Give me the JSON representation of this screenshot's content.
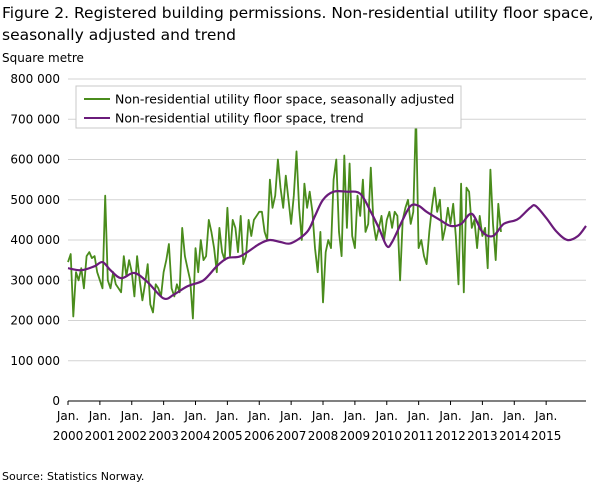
{
  "title": "Figure 2. Registered building permissions. Non-residential utility floor space, seasonally adjusted and trend",
  "unit_label": "Square metre",
  "source": "Source: Statistics Norway.",
  "colors": {
    "seasonal": "#4a8c1c",
    "trend": "#6a1b7a",
    "grid": "#d3d3d3"
  },
  "chart_data": {
    "type": "line",
    "title": "Figure 2. Registered building permissions. Non-residential utility floor space, seasonally adjusted and trend",
    "ylabel": "Square metre",
    "ylim": [
      0,
      800000
    ],
    "y_ticks": [
      0,
      100000,
      200000,
      300000,
      400000,
      500000,
      600000,
      700000,
      800000
    ],
    "y_tick_labels": [
      "0",
      "100 000",
      "200 000",
      "300 000",
      "400 000",
      "500 000",
      "600 000",
      "700 000",
      "800 000"
    ],
    "x_tick_month": "Jan.",
    "x_tick_years": [
      "2000",
      "2001",
      "2002",
      "2003",
      "2004",
      "2005",
      "2006",
      "2007",
      "2008",
      "2009",
      "2010",
      "2011",
      "2012",
      "2013",
      "2014",
      "2015"
    ],
    "x_range": [
      "2000-01",
      "2015-08"
    ],
    "grid": "horizontal",
    "legend_position": "top-left",
    "series": [
      {
        "name": "Non-residential utility floor space, seasonally adjusted",
        "color": "#4a8c1c",
        "start": "2000-01",
        "values": [
          345000,
          365000,
          210000,
          320000,
          300000,
          330000,
          280000,
          360000,
          370000,
          355000,
          360000,
          320000,
          300000,
          280000,
          510000,
          300000,
          280000,
          320000,
          290000,
          280000,
          270000,
          360000,
          310000,
          350000,
          320000,
          260000,
          360000,
          300000,
          250000,
          290000,
          340000,
          240000,
          220000,
          290000,
          280000,
          260000,
          320000,
          350000,
          390000,
          280000,
          260000,
          290000,
          270000,
          430000,
          360000,
          330000,
          300000,
          205000,
          380000,
          320000,
          400000,
          350000,
          360000,
          450000,
          420000,
          380000,
          320000,
          430000,
          370000,
          350000,
          480000,
          360000,
          450000,
          430000,
          370000,
          460000,
          340000,
          360000,
          450000,
          410000,
          450000,
          460000,
          470000,
          470000,
          420000,
          400000,
          550000,
          480000,
          510000,
          600000,
          530000,
          480000,
          560000,
          500000,
          440000,
          510000,
          620000,
          480000,
          400000,
          540000,
          480000,
          520000,
          470000,
          380000,
          320000,
          420000,
          245000,
          370000,
          400000,
          380000,
          550000,
          600000,
          420000,
          360000,
          610000,
          430000,
          590000,
          410000,
          380000,
          510000,
          460000,
          550000,
          420000,
          440000,
          580000,
          440000,
          400000,
          430000,
          460000,
          400000,
          450000,
          470000,
          430000,
          470000,
          460000,
          300000,
          450000,
          480000,
          500000,
          440000,
          470000,
          715000,
          380000,
          400000,
          360000,
          340000,
          420000,
          480000,
          530000,
          470000,
          500000,
          400000,
          430000,
          480000,
          440000,
          490000,
          410000,
          290000,
          540000,
          270000,
          530000,
          520000,
          430000,
          450000,
          380000,
          460000,
          410000,
          430000,
          330000,
          575000,
          440000,
          350000,
          490000,
          420000
        ]
      },
      {
        "name": "Non-residential utility floor space, trend",
        "color": "#6a1b7a",
        "start": "2000-01",
        "knots": [
          [
            0,
            330000
          ],
          [
            5,
            325000
          ],
          [
            10,
            335000
          ],
          [
            13,
            345000
          ],
          [
            16,
            325000
          ],
          [
            20,
            305000
          ],
          [
            25,
            318000
          ],
          [
            30,
            295000
          ],
          [
            36,
            255000
          ],
          [
            40,
            265000
          ],
          [
            45,
            285000
          ],
          [
            51,
            300000
          ],
          [
            56,
            335000
          ],
          [
            60,
            355000
          ],
          [
            65,
            360000
          ],
          [
            72,
            390000
          ],
          [
            76,
            400000
          ],
          [
            80,
            395000
          ],
          [
            84,
            392000
          ],
          [
            90,
            420000
          ],
          [
            93,
            460000
          ],
          [
            96,
            500000
          ],
          [
            100,
            520000
          ],
          [
            105,
            520000
          ],
          [
            110,
            515000
          ],
          [
            114,
            470000
          ],
          [
            117,
            430000
          ],
          [
            120,
            385000
          ],
          [
            122,
            395000
          ],
          [
            126,
            450000
          ],
          [
            129,
            485000
          ],
          [
            132,
            485000
          ],
          [
            135,
            470000
          ],
          [
            140,
            450000
          ],
          [
            144,
            435000
          ],
          [
            148,
            440000
          ],
          [
            152,
            465000
          ],
          [
            156,
            420000
          ],
          [
            160,
            410000
          ],
          [
            164,
            440000
          ],
          [
            168,
            448000
          ],
          [
            170,
            455000
          ],
          [
            174,
            480000
          ],
          [
            176,
            485000
          ],
          [
            180,
            455000
          ],
          [
            184,
            420000
          ],
          [
            188,
            400000
          ],
          [
            192,
            410000
          ],
          [
            195,
            435000
          ]
        ]
      }
    ]
  }
}
